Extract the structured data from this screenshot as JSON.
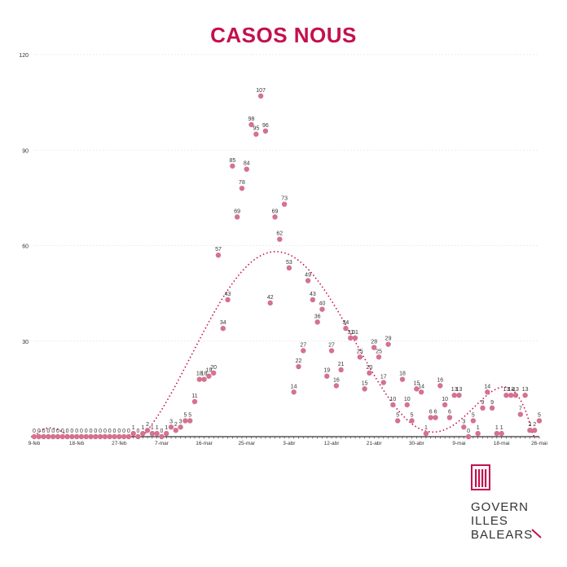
{
  "chart_data": {
    "type": "scatter",
    "title": "CASOS NOUS",
    "xlabel": "",
    "ylabel": "",
    "ylim": [
      0,
      120
    ],
    "y_ticks": [
      120,
      90,
      60,
      30
    ],
    "x_ticks": [
      "9-feb",
      "18-feb",
      "27-feb",
      "7-mar",
      "16-mar",
      "25-mar",
      "3-abr",
      "12-abr",
      "21-abr",
      "30-abr",
      "9-mai",
      "18-mai",
      "26-mai"
    ],
    "x_tick_day_index": [
      0,
      9,
      18,
      27,
      36,
      45,
      54,
      63,
      72,
      81,
      90,
      99,
      107
    ],
    "grid": "horizontal",
    "trendline": "dotted polynomial fit",
    "x": [
      "9-feb",
      "10-feb",
      "11-feb",
      "12-feb",
      "13-feb",
      "14-feb",
      "15-feb",
      "16-feb",
      "17-feb",
      "18-feb",
      "19-feb",
      "20-feb",
      "21-feb",
      "22-feb",
      "23-feb",
      "24-feb",
      "25-feb",
      "26-feb",
      "27-feb",
      "28-feb",
      "29-feb",
      "1-mar",
      "2-mar",
      "3-mar",
      "4-mar",
      "5-mar",
      "6-mar",
      "7-mar",
      "8-mar",
      "9-mar",
      "10-mar",
      "11-mar",
      "12-mar",
      "13-mar",
      "14-mar",
      "15-mar",
      "16-mar",
      "17-mar",
      "18-mar",
      "19-mar",
      "20-mar",
      "21-mar",
      "22-mar",
      "23-mar",
      "24-mar",
      "25-mar",
      "26-mar",
      "27-mar",
      "28-mar",
      "29-mar",
      "30-mar",
      "31-mar",
      "1-abr",
      "2-abr",
      "3-abr",
      "4-abr",
      "5-abr",
      "6-abr",
      "7-abr",
      "8-abr",
      "9-abr",
      "10-abr",
      "11-abr",
      "12-abr",
      "13-abr",
      "14-abr",
      "15-abr",
      "16-abr",
      "17-abr",
      "18-abr",
      "19-abr",
      "20-abr",
      "21-abr",
      "22-abr",
      "23-abr",
      "24-abr",
      "25-abr",
      "26-abr",
      "27-abr",
      "28-abr",
      "29-abr",
      "30-abr",
      "1-mai",
      "2-mai",
      "3-mai",
      "4-mai",
      "5-mai",
      "6-mai",
      "7-mai",
      "8-mai",
      "9-mai",
      "10-mai",
      "11-mai",
      "12-mai",
      "13-mai",
      "14-mai",
      "15-mai",
      "16-mai",
      "17-mai",
      "18-mai",
      "19-mai",
      "20-mai",
      "21-mai",
      "22-mai",
      "23-mai",
      "24-mai",
      "25-mai",
      "26-mai"
    ],
    "values": [
      0,
      0,
      0,
      0,
      0,
      0,
      0,
      0,
      0,
      0,
      0,
      0,
      0,
      0,
      0,
      0,
      0,
      0,
      0,
      0,
      0,
      1,
      0,
      1,
      2,
      1,
      1,
      0,
      1,
      3,
      2,
      3,
      5,
      5,
      11,
      18,
      18,
      19,
      20,
      57,
      34,
      43,
      85,
      69,
      78,
      84,
      98,
      95,
      107,
      96,
      42,
      69,
      62,
      73,
      53,
      14,
      22,
      27,
      49,
      43,
      36,
      40,
      19,
      27,
      16,
      21,
      34,
      31,
      31,
      25,
      15,
      20,
      28,
      25,
      17,
      29,
      10,
      5,
      18,
      10,
      5,
      15,
      14,
      1,
      6,
      6,
      16,
      10,
      6,
      13,
      13,
      3,
      0,
      5,
      1,
      9,
      14,
      9,
      1,
      1,
      13,
      13,
      13,
      7,
      13,
      2,
      2,
      5
    ],
    "series": [
      {
        "name": "",
        "color": "#d4728f"
      }
    ],
    "colors": {
      "title": "#c4104e",
      "marker": "#d4728f",
      "trend": "#c4104e",
      "grid": "#e6e6e6",
      "axis": "#333333",
      "label": "#333333"
    }
  },
  "logo": {
    "lines": [
      "GOVERN",
      "ILLES",
      "BALEARS"
    ],
    "colors": {
      "brand": "#c4104e",
      "text": "#333333"
    }
  }
}
